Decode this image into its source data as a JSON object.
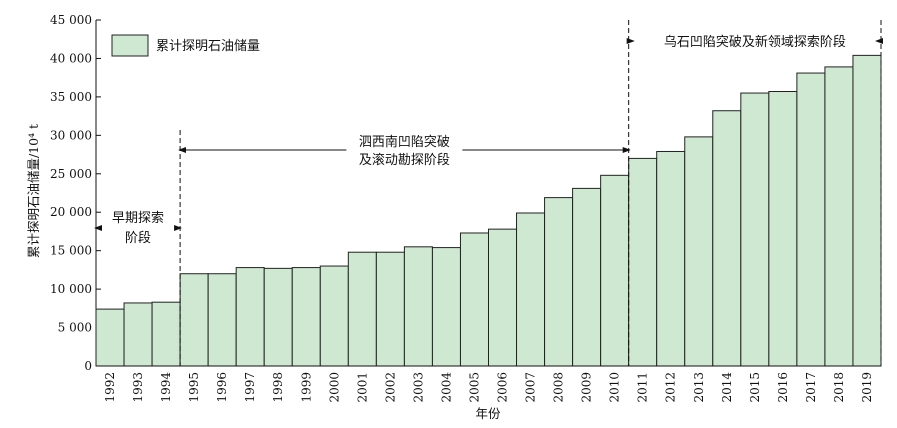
{
  "chart_data": {
    "type": "bar",
    "categories": [
      "1992",
      "1993",
      "1994",
      "1995",
      "1996",
      "1997",
      "1998",
      "1999",
      "2000",
      "2001",
      "2002",
      "2003",
      "2004",
      "2005",
      "2006",
      "2007",
      "2008",
      "2009",
      "2010",
      "2011",
      "2012",
      "2013",
      "2014",
      "2015",
      "2016",
      "2017",
      "2018",
      "2019"
    ],
    "series": [
      {
        "name": "累计探明石油储量",
        "values": [
          7400,
          8200,
          8300,
          12000,
          12000,
          12800,
          12700,
          12800,
          13000,
          14800,
          14800,
          15500,
          15400,
          17300,
          17800,
          19900,
          21900,
          23100,
          24800,
          27000,
          27900,
          29800,
          33200,
          35500,
          35700,
          38100,
          38900,
          40400
        ]
      }
    ],
    "xlabel": "年份",
    "ylabel": "累计探明石油储量/10⁴ t",
    "ylim": [
      0,
      45000
    ],
    "yticks": [
      0,
      5000,
      10000,
      15000,
      20000,
      25000,
      30000,
      35000,
      40000,
      45000
    ],
    "ytick_labels": [
      "0",
      "5 000",
      "10 000",
      "15 000",
      "20 000",
      "25 000",
      "30 000",
      "35 000",
      "40 000",
      "45 000"
    ],
    "legend_position": "top-left",
    "bar_color": "#cfe8d2",
    "grid": false,
    "phases": [
      {
        "label_lines": [
          "早期探索",
          "阶段"
        ],
        "from": "1992",
        "to": "1994"
      },
      {
        "label_lines": [
          "泗西南凹陷突破",
          "及滚动勘探阶段"
        ],
        "from": "1995",
        "to": "2010"
      },
      {
        "label_lines": [
          "乌石凹陷突破及新领域探索阶段"
        ],
        "from": "2011",
        "to": "2019"
      }
    ]
  }
}
